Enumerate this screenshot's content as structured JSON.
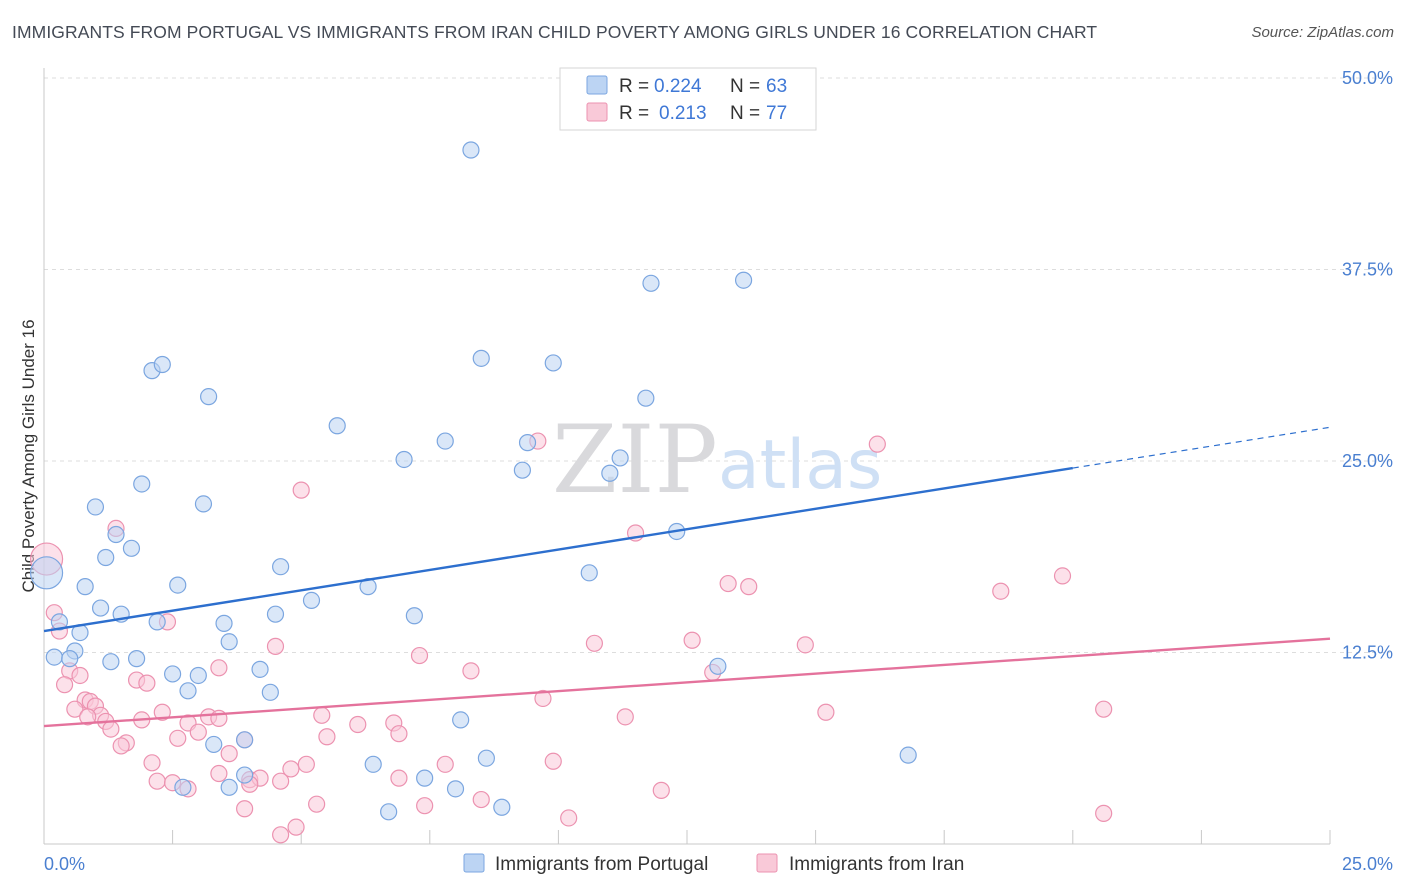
{
  "title": "IMMIGRANTS FROM PORTUGAL VS IMMIGRANTS FROM IRAN CHILD POVERTY AMONG GIRLS UNDER 16 CORRELATION CHART",
  "source": "Source: ZipAtlas.com",
  "watermark": {
    "zip": "ZIP",
    "atlas": "atlas"
  },
  "colors": {
    "portugal_fill": "#bcd4f3",
    "portugal_stroke": "#7ba6e0",
    "portugal_line": "#2d6fce",
    "iran_fill": "#f9c9d8",
    "iran_stroke": "#ec92b0",
    "iran_line": "#e4729c",
    "tick_text": "#4a7fd0",
    "grid": "#dddddd"
  },
  "legend": {
    "r_label": "R =",
    "n_label": "N =",
    "portugal_r": "0.224",
    "portugal_n": "63",
    "iran_r": "0.213",
    "iran_n": "77"
  },
  "chart_data": {
    "type": "scatter",
    "xlabel": "",
    "ylabel": "Child Poverty Among Girls Under 16",
    "xlim": [
      0,
      25
    ],
    "ylim": [
      0,
      50
    ],
    "x_tick_labels": [
      {
        "value": 0,
        "label": "0.0%"
      },
      {
        "value": 25,
        "label": "25.0%"
      }
    ],
    "y_tick_labels": [
      {
        "value": 12.5,
        "label": "12.5%"
      },
      {
        "value": 25,
        "label": "25.0%"
      },
      {
        "value": 37.5,
        "label": "37.5%"
      },
      {
        "value": 50,
        "label": "50.0%"
      }
    ],
    "grid": "horizontal dashed",
    "legend_position": "top-center",
    "series": [
      {
        "name": "Immigrants from Portugal",
        "r": 0.224,
        "n": 63,
        "trend": {
          "x0": 0,
          "y0": 13.9,
          "x1": 25,
          "y1": 27.2,
          "solid_until": 20
        },
        "points": [
          [
            8.3,
            45.3
          ],
          [
            11.8,
            36.6
          ],
          [
            13.6,
            36.8
          ],
          [
            8.5,
            31.7
          ],
          [
            9.9,
            31.4
          ],
          [
            2.1,
            30.9
          ],
          [
            2.3,
            31.3
          ],
          [
            3.2,
            29.2
          ],
          [
            11.7,
            29.1
          ],
          [
            5.7,
            27.3
          ],
          [
            7.8,
            26.3
          ],
          [
            9.4,
            26.2
          ],
          [
            7.0,
            25.1
          ],
          [
            11.2,
            25.2
          ],
          [
            9.3,
            24.4
          ],
          [
            11.0,
            24.2
          ],
          [
            1.9,
            23.5
          ],
          [
            1.0,
            22.0
          ],
          [
            3.1,
            22.2
          ],
          [
            12.3,
            20.4
          ],
          [
            1.4,
            20.2
          ],
          [
            1.7,
            19.3
          ],
          [
            1.2,
            18.7
          ],
          [
            0.05,
            17.7
          ],
          [
            4.6,
            18.1
          ],
          [
            10.6,
            17.7
          ],
          [
            0.8,
            16.8
          ],
          [
            2.6,
            16.9
          ],
          [
            6.3,
            16.8
          ],
          [
            5.2,
            15.9
          ],
          [
            1.1,
            15.4
          ],
          [
            1.5,
            15.0
          ],
          [
            4.5,
            15.0
          ],
          [
            7.2,
            14.9
          ],
          [
            2.2,
            14.5
          ],
          [
            3.5,
            14.4
          ],
          [
            0.7,
            13.8
          ],
          [
            0.3,
            14.5
          ],
          [
            3.6,
            13.2
          ],
          [
            0.6,
            12.6
          ],
          [
            0.2,
            12.2
          ],
          [
            0.5,
            12.1
          ],
          [
            1.3,
            11.9
          ],
          [
            1.8,
            12.1
          ],
          [
            2.5,
            11.1
          ],
          [
            3.0,
            11.0
          ],
          [
            4.2,
            11.4
          ],
          [
            13.1,
            11.6
          ],
          [
            2.8,
            10.0
          ],
          [
            4.4,
            9.9
          ],
          [
            8.1,
            8.1
          ],
          [
            3.3,
            6.5
          ],
          [
            3.9,
            6.8
          ],
          [
            16.8,
            5.8
          ],
          [
            6.4,
            5.2
          ],
          [
            8.6,
            5.6
          ],
          [
            3.9,
            4.5
          ],
          [
            7.4,
            4.3
          ],
          [
            2.7,
            3.7
          ],
          [
            3.6,
            3.7
          ],
          [
            8.0,
            3.6
          ],
          [
            8.9,
            2.4
          ],
          [
            6.7,
            2.1
          ]
        ]
      },
      {
        "name": "Immigrants from Iran",
        "r": 0.213,
        "n": 77,
        "trend": {
          "x0": 0,
          "y0": 7.7,
          "x1": 25,
          "y1": 13.4,
          "solid_until": 25
        },
        "points": [
          [
            16.2,
            26.1
          ],
          [
            9.6,
            26.3
          ],
          [
            5.0,
            23.1
          ],
          [
            1.4,
            20.6
          ],
          [
            11.5,
            20.3
          ],
          [
            0.05,
            18.6
          ],
          [
            19.8,
            17.5
          ],
          [
            13.3,
            17.0
          ],
          [
            13.7,
            16.8
          ],
          [
            18.6,
            16.5
          ],
          [
            0.2,
            15.1
          ],
          [
            0.3,
            13.9
          ],
          [
            2.4,
            14.5
          ],
          [
            10.7,
            13.1
          ],
          [
            12.6,
            13.3
          ],
          [
            14.8,
            13.0
          ],
          [
            4.5,
            12.9
          ],
          [
            7.3,
            12.3
          ],
          [
            0.5,
            11.3
          ],
          [
            3.4,
            11.5
          ],
          [
            8.3,
            11.3
          ],
          [
            13.0,
            11.2
          ],
          [
            1.8,
            10.7
          ],
          [
            2.0,
            10.5
          ],
          [
            0.4,
            10.4
          ],
          [
            0.8,
            9.4
          ],
          [
            0.9,
            9.3
          ],
          [
            1.0,
            9.0
          ],
          [
            9.7,
            9.5
          ],
          [
            20.6,
            8.8
          ],
          [
            0.6,
            8.8
          ],
          [
            1.1,
            8.4
          ],
          [
            0.85,
            8.3
          ],
          [
            2.3,
            8.6
          ],
          [
            5.4,
            8.4
          ],
          [
            11.3,
            8.3
          ],
          [
            15.2,
            8.6
          ],
          [
            3.2,
            8.3
          ],
          [
            3.4,
            8.2
          ],
          [
            1.9,
            8.1
          ],
          [
            1.2,
            8.0
          ],
          [
            2.8,
            7.9
          ],
          [
            6.1,
            7.8
          ],
          [
            6.8,
            7.9
          ],
          [
            1.3,
            7.5
          ],
          [
            3.0,
            7.3
          ],
          [
            5.5,
            7.0
          ],
          [
            6.9,
            7.2
          ],
          [
            2.6,
            6.9
          ],
          [
            3.9,
            6.8
          ],
          [
            1.6,
            6.6
          ],
          [
            1.5,
            6.4
          ],
          [
            3.6,
            5.9
          ],
          [
            2.1,
            5.3
          ],
          [
            5.1,
            5.2
          ],
          [
            7.8,
            5.2
          ],
          [
            9.9,
            5.4
          ],
          [
            4.8,
            4.9
          ],
          [
            3.4,
            4.6
          ],
          [
            4.0,
            4.2
          ],
          [
            4.2,
            4.3
          ],
          [
            4.6,
            4.1
          ],
          [
            2.2,
            4.1
          ],
          [
            2.5,
            4.0
          ],
          [
            2.8,
            3.6
          ],
          [
            12.0,
            3.5
          ],
          [
            4.0,
            3.9
          ],
          [
            8.5,
            2.9
          ],
          [
            5.3,
            2.6
          ],
          [
            7.4,
            2.5
          ],
          [
            3.9,
            2.3
          ],
          [
            10.2,
            1.7
          ],
          [
            20.6,
            2.0
          ],
          [
            4.9,
            1.1
          ],
          [
            4.6,
            0.6
          ],
          [
            6.9,
            4.3
          ],
          [
            0.7,
            11.0
          ]
        ]
      }
    ],
    "bottom_legend": [
      "Immigrants from Portugal",
      "Immigrants from Iran"
    ]
  }
}
